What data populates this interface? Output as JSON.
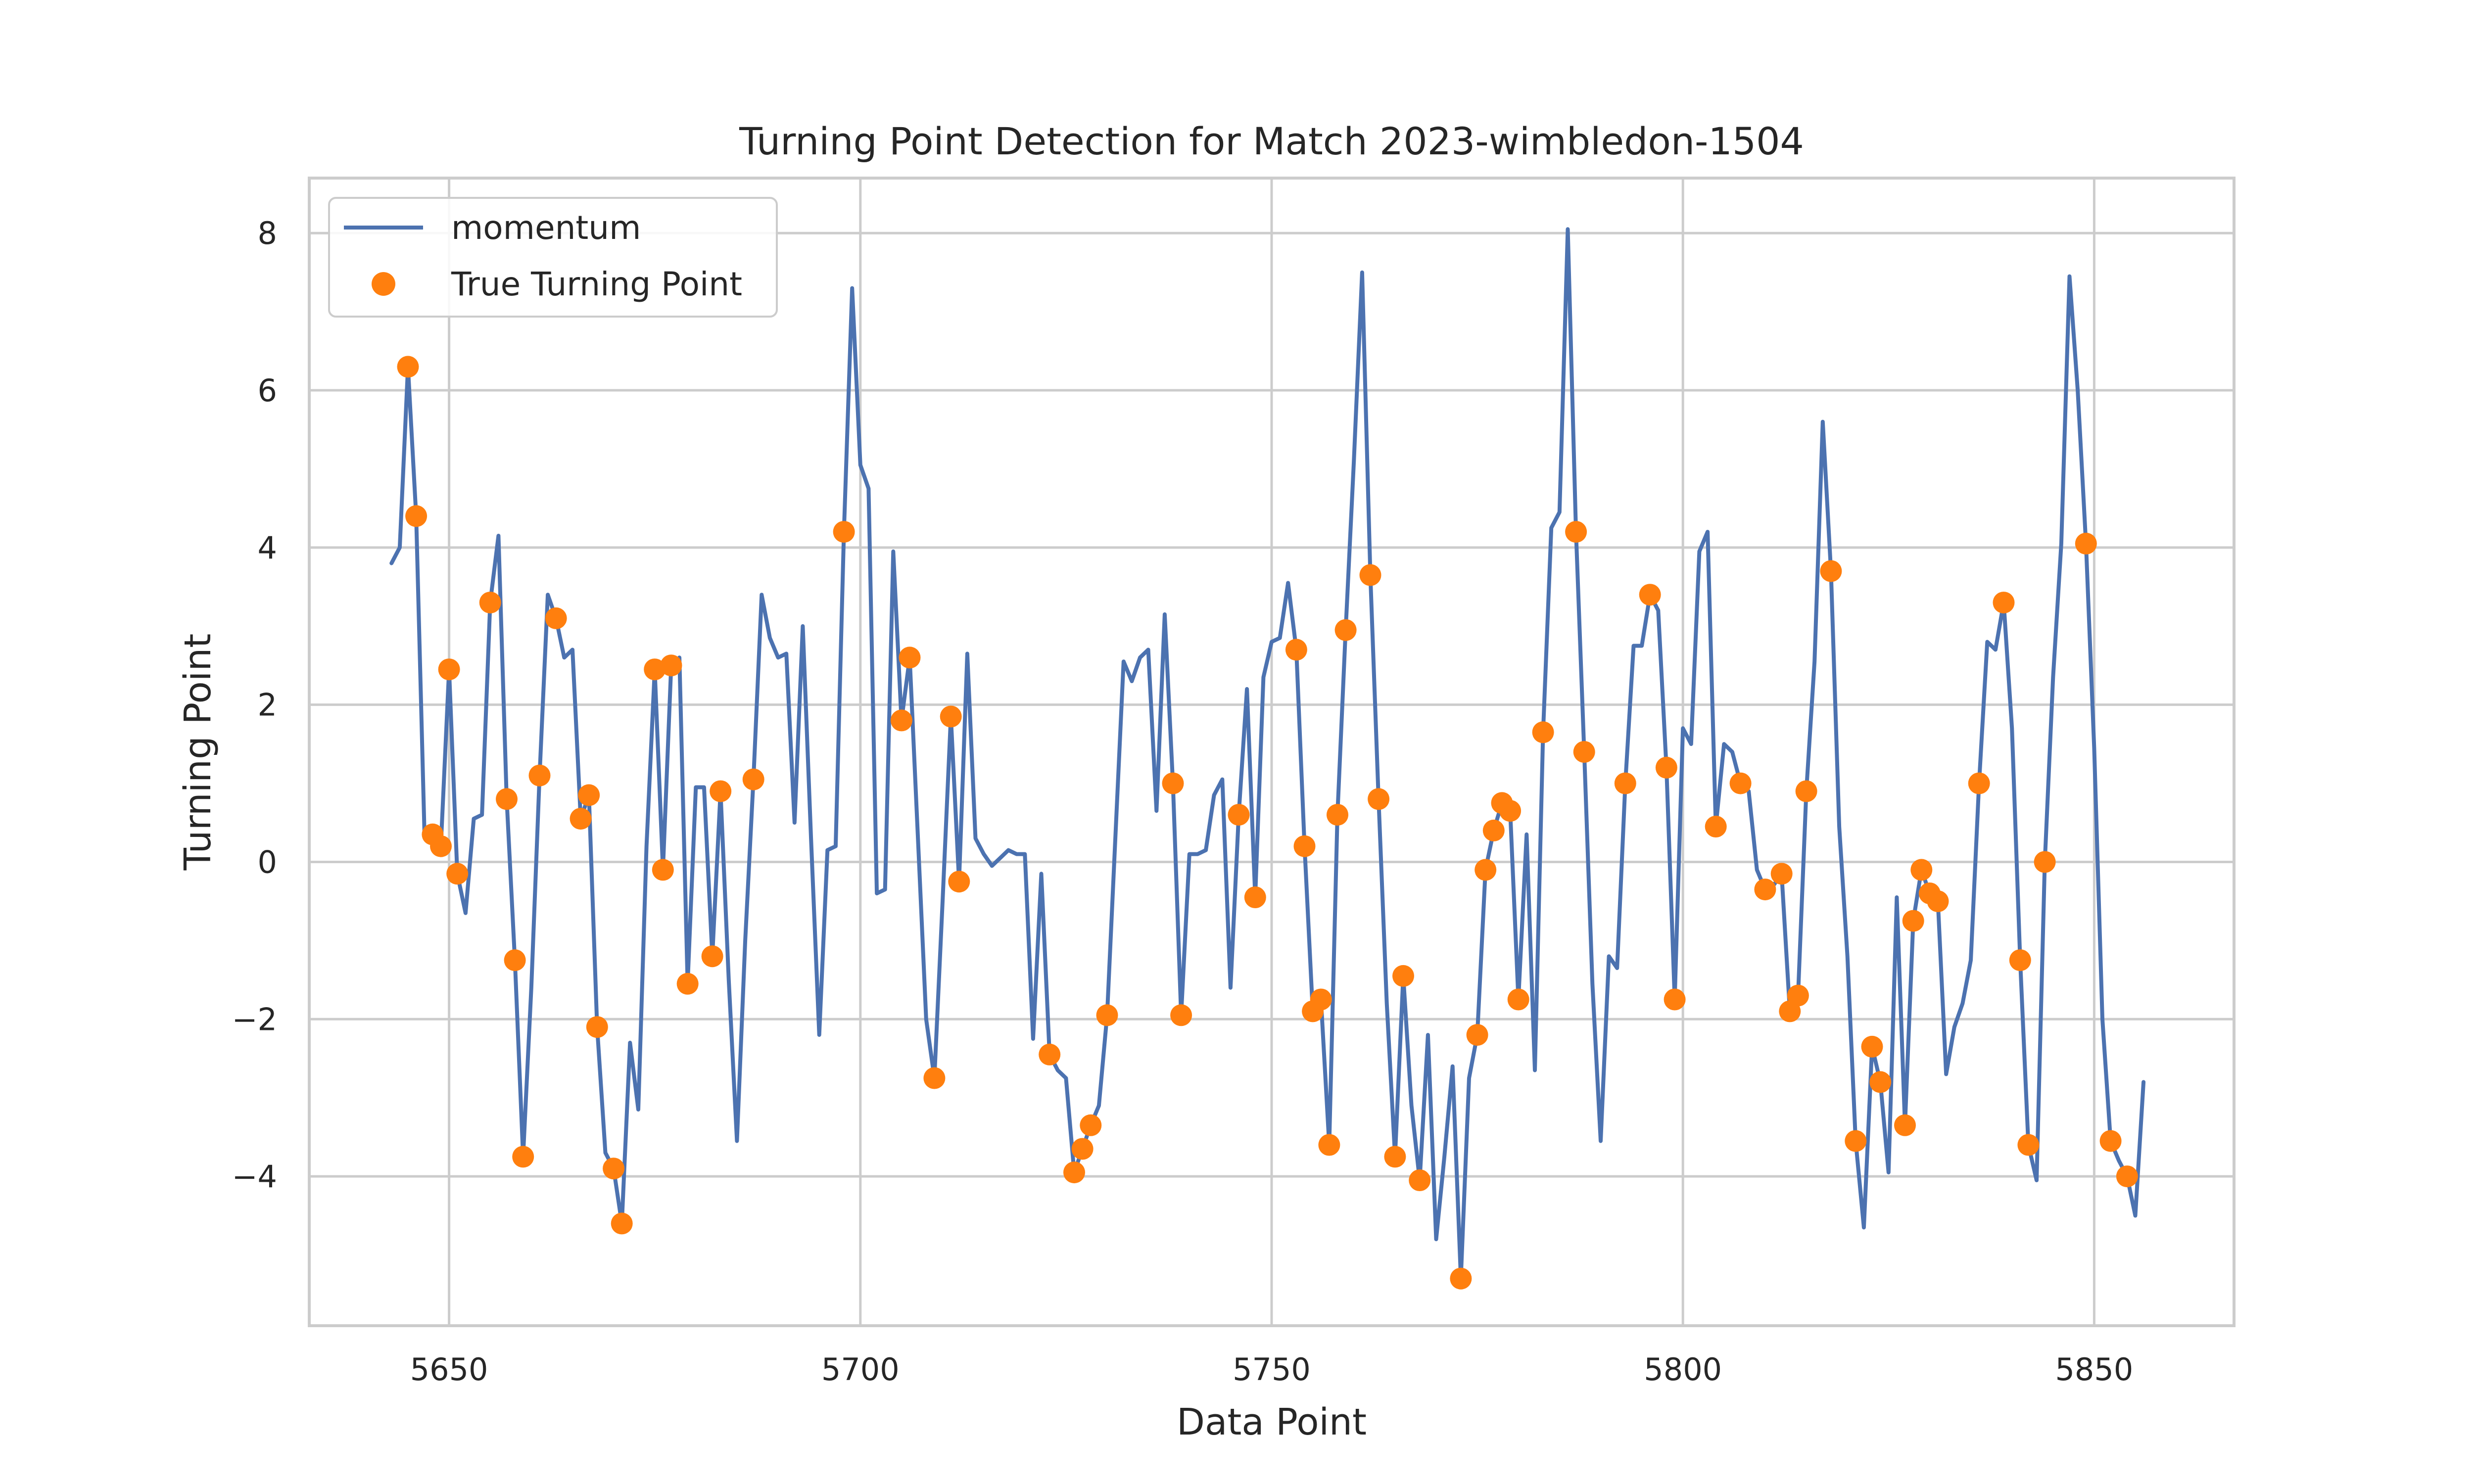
{
  "chart_data": {
    "type": "line",
    "title": "Turning Point Detection for Match 2023-wimbledon-1504",
    "xlabel": "Data Point",
    "ylabel": "Turning Point",
    "xlim": [
      5633,
      5867
    ],
    "ylim": [
      -5.9,
      8.7
    ],
    "xticks": [
      5650,
      5700,
      5750,
      5800,
      5850
    ],
    "xtick_labels": [
      "5650",
      "5700",
      "5750",
      "5800",
      "5850"
    ],
    "yticks": [
      -4,
      -2,
      0,
      2,
      4,
      6,
      8
    ],
    "ytick_labels": [
      "−4",
      "−2",
      "0",
      "2",
      "4",
      "6",
      "8"
    ],
    "grid": true,
    "legend_position": "upper-left",
    "colors": {
      "momentum": "#4c72b0",
      "turning_points": "#ff7f0e",
      "grid": "#cccccc",
      "frame": "#cccccc"
    },
    "series": [
      {
        "name": "momentum",
        "kind": "line",
        "points": [
          [
            5643,
            3.8
          ],
          [
            5644,
            4.0
          ],
          [
            5645,
            6.3
          ],
          [
            5646,
            4.4
          ],
          [
            5647,
            0.4
          ],
          [
            5648,
            0.35
          ],
          [
            5649,
            0.2
          ],
          [
            5650,
            2.45
          ],
          [
            5651,
            -0.15
          ],
          [
            5652,
            -0.65
          ],
          [
            5653,
            0.55
          ],
          [
            5654,
            0.6
          ],
          [
            5655,
            3.3
          ],
          [
            5656,
            4.15
          ],
          [
            5657,
            0.8
          ],
          [
            5658,
            -1.25
          ],
          [
            5659,
            -3.75
          ],
          [
            5660,
            -1.6
          ],
          [
            5661,
            1.1
          ],
          [
            5662,
            3.4
          ],
          [
            5663,
            3.1
          ],
          [
            5664,
            2.6
          ],
          [
            5665,
            2.7
          ],
          [
            5666,
            0.55
          ],
          [
            5667,
            0.85
          ],
          [
            5668,
            -2.1
          ],
          [
            5669,
            -3.7
          ],
          [
            5670,
            -3.9
          ],
          [
            5671,
            -4.6
          ],
          [
            5672,
            -2.3
          ],
          [
            5673,
            -3.15
          ],
          [
            5674,
            0.2
          ],
          [
            5675,
            2.45
          ],
          [
            5676,
            -0.1
          ],
          [
            5677,
            2.5
          ],
          [
            5678,
            2.6
          ],
          [
            5679,
            -1.55
          ],
          [
            5680,
            0.95
          ],
          [
            5681,
            0.95
          ],
          [
            5682,
            -1.2
          ],
          [
            5683,
            0.9
          ],
          [
            5684,
            -1.5
          ],
          [
            5685,
            -3.55
          ],
          [
            5686,
            -1.0
          ],
          [
            5687,
            1.05
          ],
          [
            5688,
            3.4
          ],
          [
            5689,
            2.85
          ],
          [
            5690,
            2.6
          ],
          [
            5691,
            2.65
          ],
          [
            5692,
            0.5
          ],
          [
            5693,
            3.0
          ],
          [
            5694,
            0.3
          ],
          [
            5695,
            -2.2
          ],
          [
            5696,
            0.15
          ],
          [
            5697,
            0.2
          ],
          [
            5698,
            4.2
          ],
          [
            5699,
            7.3
          ],
          [
            5700,
            5.05
          ],
          [
            5701,
            4.75
          ],
          [
            5702,
            -0.4
          ],
          [
            5703,
            -0.35
          ],
          [
            5704,
            3.95
          ],
          [
            5705,
            1.8
          ],
          [
            5706,
            2.6
          ],
          [
            5707,
            0.3
          ],
          [
            5708,
            -2.0
          ],
          [
            5709,
            -2.75
          ],
          [
            5710,
            -0.5
          ],
          [
            5711,
            1.85
          ],
          [
            5712,
            -0.25
          ],
          [
            5713,
            2.65
          ],
          [
            5714,
            0.3
          ],
          [
            5715,
            0.1
          ],
          [
            5716,
            -0.05
          ],
          [
            5717,
            0.05
          ],
          [
            5718,
            0.15
          ],
          [
            5719,
            0.1
          ],
          [
            5720,
            0.1
          ],
          [
            5721,
            -2.25
          ],
          [
            5722,
            -0.15
          ],
          [
            5723,
            -2.45
          ],
          [
            5724,
            -2.65
          ],
          [
            5725,
            -2.75
          ],
          [
            5726,
            -3.95
          ],
          [
            5727,
            -3.65
          ],
          [
            5728,
            -3.35
          ],
          [
            5729,
            -3.1
          ],
          [
            5730,
            -1.95
          ],
          [
            5731,
            0.3
          ],
          [
            5732,
            2.55
          ],
          [
            5733,
            2.3
          ],
          [
            5734,
            2.6
          ],
          [
            5735,
            2.7
          ],
          [
            5736,
            0.65
          ],
          [
            5737,
            3.15
          ],
          [
            5738,
            1.0
          ],
          [
            5739,
            -1.95
          ],
          [
            5740,
            0.1
          ],
          [
            5741,
            0.1
          ],
          [
            5742,
            0.15
          ],
          [
            5743,
            0.85
          ],
          [
            5744,
            1.05
          ],
          [
            5745,
            -1.6
          ],
          [
            5746,
            0.6
          ],
          [
            5747,
            2.2
          ],
          [
            5748,
            -0.45
          ],
          [
            5749,
            2.35
          ],
          [
            5750,
            2.8
          ],
          [
            5751,
            2.85
          ],
          [
            5752,
            3.55
          ],
          [
            5753,
            2.7
          ],
          [
            5754,
            0.2
          ],
          [
            5755,
            -1.9
          ],
          [
            5756,
            -1.75
          ],
          [
            5757,
            -3.6
          ],
          [
            5758,
            0.6
          ],
          [
            5759,
            2.95
          ],
          [
            5760,
            5.1
          ],
          [
            5761,
            7.5
          ],
          [
            5762,
            3.65
          ],
          [
            5763,
            0.8
          ],
          [
            5764,
            -1.8
          ],
          [
            5765,
            -3.75
          ],
          [
            5766,
            -1.45
          ],
          [
            5767,
            -3.1
          ],
          [
            5768,
            -4.05
          ],
          [
            5769,
            -2.2
          ],
          [
            5770,
            -4.8
          ],
          [
            5771,
            -3.75
          ],
          [
            5772,
            -2.6
          ],
          [
            5773,
            -5.3
          ],
          [
            5774,
            -2.75
          ],
          [
            5775,
            -2.2
          ],
          [
            5776,
            -0.1
          ],
          [
            5777,
            0.4
          ],
          [
            5778,
            0.75
          ],
          [
            5779,
            0.65
          ],
          [
            5780,
            -1.75
          ],
          [
            5781,
            0.35
          ],
          [
            5782,
            -2.65
          ],
          [
            5783,
            1.65
          ],
          [
            5784,
            4.25
          ],
          [
            5785,
            4.45
          ],
          [
            5786,
            8.05
          ],
          [
            5787,
            4.2
          ],
          [
            5788,
            1.4
          ],
          [
            5789,
            -1.55
          ],
          [
            5790,
            -3.55
          ],
          [
            5791,
            -1.2
          ],
          [
            5792,
            -1.35
          ],
          [
            5793,
            1.0
          ],
          [
            5794,
            2.75
          ],
          [
            5795,
            2.75
          ],
          [
            5796,
            3.4
          ],
          [
            5797,
            3.2
          ],
          [
            5798,
            1.2
          ],
          [
            5799,
            -1.75
          ],
          [
            5800,
            1.7
          ],
          [
            5801,
            1.5
          ],
          [
            5802,
            3.95
          ],
          [
            5803,
            4.2
          ],
          [
            5804,
            0.45
          ],
          [
            5805,
            1.5
          ],
          [
            5806,
            1.4
          ],
          [
            5807,
            1.0
          ],
          [
            5808,
            0.9
          ],
          [
            5809,
            -0.1
          ],
          [
            5810,
            -0.35
          ],
          [
            5811,
            -0.3
          ],
          [
            5812,
            -0.15
          ],
          [
            5813,
            -1.9
          ],
          [
            5814,
            -1.7
          ],
          [
            5815,
            0.9
          ],
          [
            5816,
            2.55
          ],
          [
            5817,
            5.6
          ],
          [
            5818,
            3.7
          ],
          [
            5819,
            0.45
          ],
          [
            5820,
            -1.2
          ],
          [
            5821,
            -3.55
          ],
          [
            5822,
            -4.65
          ],
          [
            5823,
            -2.35
          ],
          [
            5824,
            -2.8
          ],
          [
            5825,
            -3.95
          ],
          [
            5826,
            -0.45
          ],
          [
            5827,
            -3.35
          ],
          [
            5828,
            -0.75
          ],
          [
            5829,
            -0.1
          ],
          [
            5830,
            -0.4
          ],
          [
            5831,
            -0.5
          ],
          [
            5832,
            -2.7
          ],
          [
            5833,
            -2.1
          ],
          [
            5834,
            -1.8
          ],
          [
            5835,
            -1.25
          ],
          [
            5836,
            1.0
          ],
          [
            5837,
            2.8
          ],
          [
            5838,
            2.7
          ],
          [
            5839,
            3.3
          ],
          [
            5840,
            1.7
          ],
          [
            5841,
            -1.25
          ],
          [
            5842,
            -3.6
          ],
          [
            5843,
            -4.05
          ],
          [
            5844,
            0.0
          ],
          [
            5845,
            2.35
          ],
          [
            5846,
            4.05
          ],
          [
            5847,
            7.45
          ],
          [
            5848,
            6.0
          ],
          [
            5849,
            4.05
          ],
          [
            5850,
            1.45
          ],
          [
            5851,
            -2.0
          ],
          [
            5852,
            -3.55
          ],
          [
            5853,
            -3.8
          ],
          [
            5854,
            -4.0
          ],
          [
            5855,
            -4.5
          ],
          [
            5856,
            -2.8
          ]
        ]
      },
      {
        "name": "True Turning Point",
        "kind": "scatter",
        "points": [
          [
            5645,
            6.3
          ],
          [
            5646,
            4.4
          ],
          [
            5648,
            0.35
          ],
          [
            5649,
            0.2
          ],
          [
            5650,
            2.45
          ],
          [
            5651,
            -0.15
          ],
          [
            5655,
            3.3
          ],
          [
            5657,
            0.8
          ],
          [
            5658,
            -1.25
          ],
          [
            5659,
            -3.75
          ],
          [
            5661,
            1.1
          ],
          [
            5663,
            3.1
          ],
          [
            5666,
            0.55
          ],
          [
            5667,
            0.85
          ],
          [
            5668,
            -2.1
          ],
          [
            5670,
            -3.9
          ],
          [
            5671,
            -4.6
          ],
          [
            5675,
            2.45
          ],
          [
            5676,
            -0.1
          ],
          [
            5677,
            2.5
          ],
          [
            5679,
            -1.55
          ],
          [
            5682,
            -1.2
          ],
          [
            5683,
            0.9
          ],
          [
            5687,
            1.05
          ],
          [
            5698,
            4.2
          ],
          [
            5705,
            1.8
          ],
          [
            5706,
            2.6
          ],
          [
            5709,
            -2.75
          ],
          [
            5711,
            1.85
          ],
          [
            5712,
            -0.25
          ],
          [
            5723,
            -2.45
          ],
          [
            5726,
            -3.95
          ],
          [
            5727,
            -3.65
          ],
          [
            5728,
            -3.35
          ],
          [
            5730,
            -1.95
          ],
          [
            5738,
            1.0
          ],
          [
            5739,
            -1.95
          ],
          [
            5746,
            0.6
          ],
          [
            5748,
            -0.45
          ],
          [
            5753,
            2.7
          ],
          [
            5754,
            0.2
          ],
          [
            5755,
            -1.9
          ],
          [
            5756,
            -1.75
          ],
          [
            5757,
            -3.6
          ],
          [
            5758,
            0.6
          ],
          [
            5759,
            2.95
          ],
          [
            5762,
            3.65
          ],
          [
            5763,
            0.8
          ],
          [
            5765,
            -3.75
          ],
          [
            5766,
            -1.45
          ],
          [
            5768,
            -4.05
          ],
          [
            5773,
            -5.3
          ],
          [
            5775,
            -2.2
          ],
          [
            5776,
            -0.1
          ],
          [
            5777,
            0.4
          ],
          [
            5778,
            0.75
          ],
          [
            5779,
            0.65
          ],
          [
            5780,
            -1.75
          ],
          [
            5783,
            1.65
          ],
          [
            5787,
            4.2
          ],
          [
            5788,
            1.4
          ],
          [
            5793,
            1.0
          ],
          [
            5796,
            3.4
          ],
          [
            5798,
            1.2
          ],
          [
            5799,
            -1.75
          ],
          [
            5804,
            0.45
          ],
          [
            5807,
            1.0
          ],
          [
            5810,
            -0.35
          ],
          [
            5812,
            -0.15
          ],
          [
            5813,
            -1.9
          ],
          [
            5814,
            -1.7
          ],
          [
            5815,
            0.9
          ],
          [
            5818,
            3.7
          ],
          [
            5821,
            -3.55
          ],
          [
            5823,
            -2.35
          ],
          [
            5824,
            -2.8
          ],
          [
            5827,
            -3.35
          ],
          [
            5828,
            -0.75
          ],
          [
            5829,
            -0.1
          ],
          [
            5830,
            -0.4
          ],
          [
            5831,
            -0.5
          ],
          [
            5836,
            1.0
          ],
          [
            5839,
            3.3
          ],
          [
            5841,
            -1.25
          ],
          [
            5842,
            -3.6
          ],
          [
            5844,
            0.0
          ],
          [
            5849,
            4.05
          ],
          [
            5852,
            -3.55
          ],
          [
            5854,
            -4.0
          ]
        ]
      }
    ]
  }
}
